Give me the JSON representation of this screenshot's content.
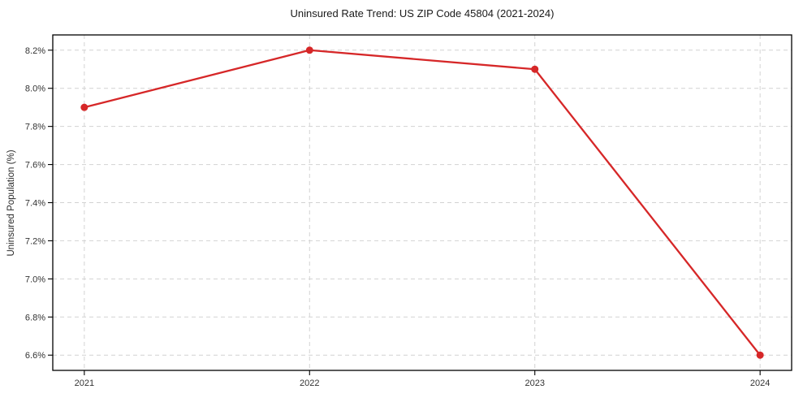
{
  "chart_data": {
    "type": "line",
    "title": "Uninsured Rate Trend: US ZIP Code 45804 (2021-2024)",
    "xlabel": "",
    "ylabel": "Uninsured Population (%)",
    "x": [
      2021,
      2022,
      2023,
      2024
    ],
    "values": [
      7.9,
      8.2,
      8.1,
      6.6
    ],
    "xlim": [
      2020.86,
      2024.14
    ],
    "ylim": [
      6.52,
      8.28
    ],
    "xticks": [
      2021,
      2022,
      2023,
      2024
    ],
    "xtick_labels": [
      "2021",
      "2022",
      "2023",
      "2024"
    ],
    "yticks": [
      6.6,
      6.8,
      7.0,
      7.2,
      7.4,
      7.6,
      7.8,
      8.0,
      8.2
    ],
    "ytick_labels": [
      "6.6%",
      "6.8%",
      "7.0%",
      "7.2%",
      "7.4%",
      "7.6%",
      "7.8%",
      "8.0%",
      "8.2%"
    ],
    "grid": true,
    "legend": "none",
    "colors": {
      "line": "#d62728",
      "marker": "#d62728",
      "grid": "#d2d2d2",
      "spine": "#000000",
      "tick_text": "#333333",
      "title_text": "#1a1a1a"
    }
  }
}
